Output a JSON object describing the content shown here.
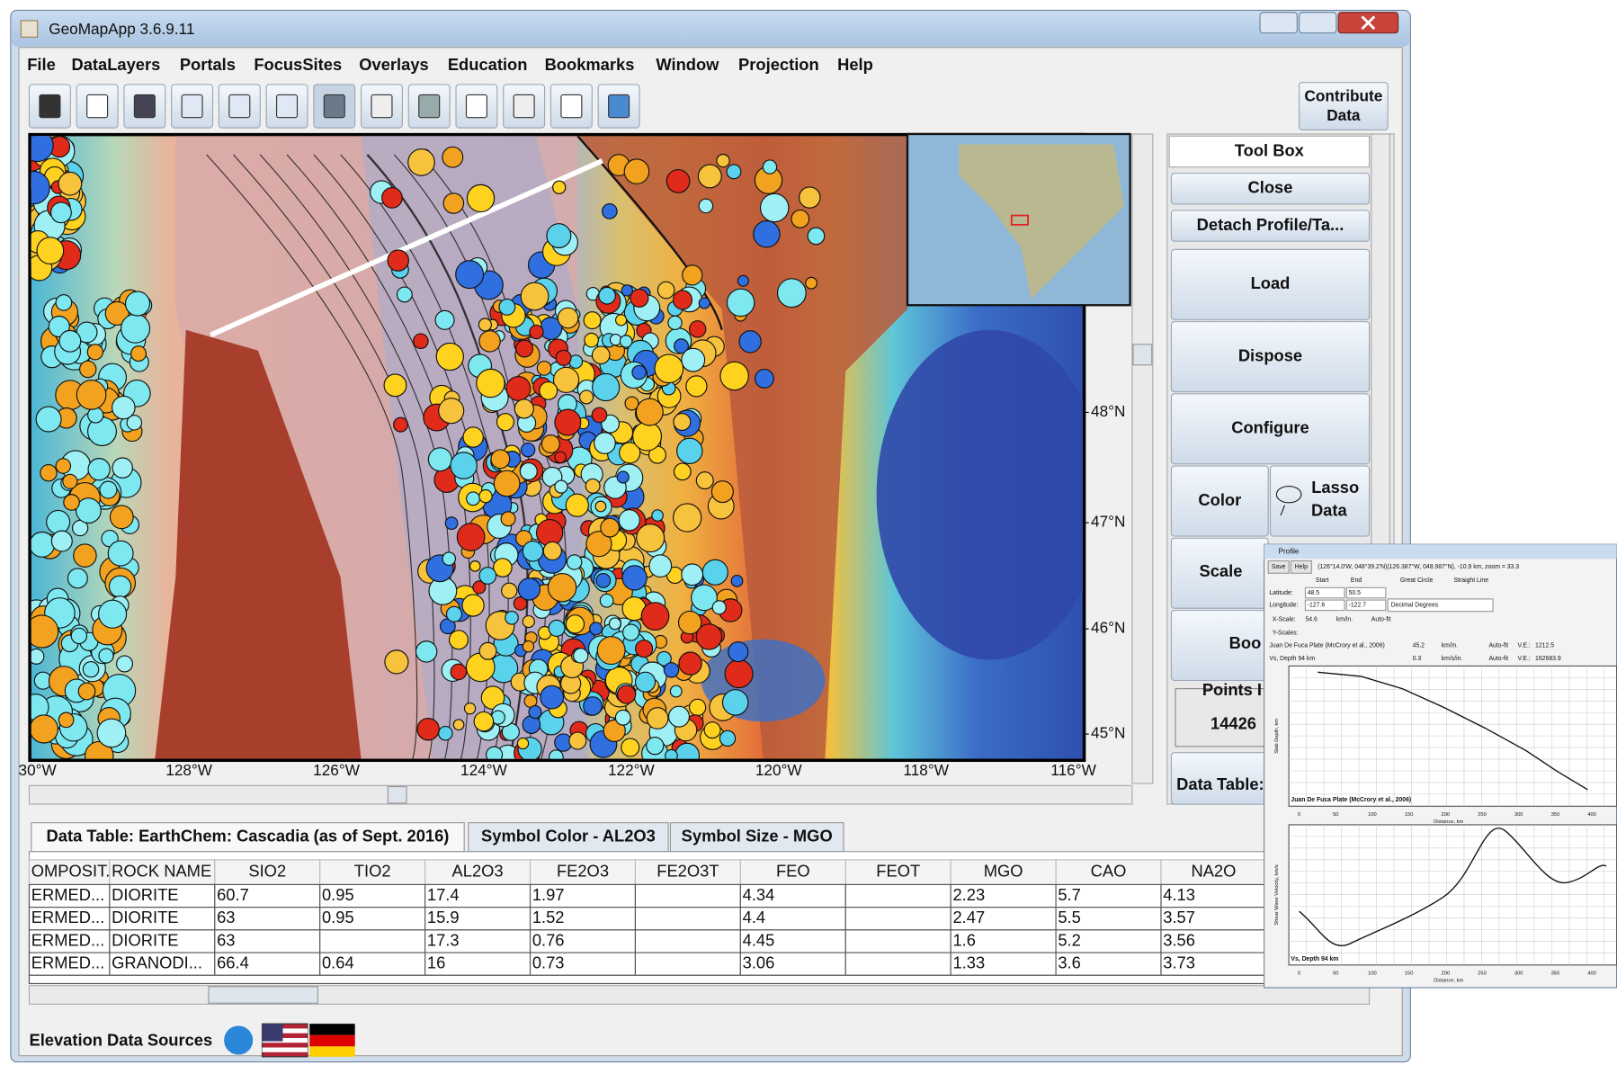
{
  "window": {
    "title": "GeoMapApp 3.6.9.11"
  },
  "menu": [
    "File",
    "DataLayers",
    "Portals",
    "FocusSites",
    "Overlays",
    "Education",
    "Bookmarks",
    "Window",
    "Projection",
    "Help"
  ],
  "toolbar": {
    "contribute": [
      "Contribute",
      "Data"
    ]
  },
  "map": {
    "lat_labels": [
      "48°N",
      "47°N",
      "46°N",
      "45°N"
    ],
    "lon_labels": [
      "30°W",
      "128°W",
      "126°W",
      "124°W",
      "122°W",
      "120°W",
      "118°W",
      "116°W"
    ]
  },
  "toolbox": {
    "title": "Tool Box",
    "buttons": [
      "Close",
      "Detach Profile/Ta...",
      "Load",
      "Dispose",
      "Configure"
    ],
    "color": "Color",
    "lasso": [
      "Lasso",
      "Data"
    ],
    "scale": "Scale",
    "book": "Boo",
    "points_label": "Points I",
    "points_value": "14426",
    "data_table": "Data Table:"
  },
  "tabs": [
    "Data Table: EarthChem: Cascadia (as of Sept. 2016)",
    "Symbol Color - AL2O3",
    "Symbol Size - MGO"
  ],
  "table": {
    "columns": [
      "OMPOSIT...",
      "ROCK NAME",
      "SIO2",
      "TIO2",
      "AL2O3",
      "FE2O3",
      "FE2O3T",
      "FEO",
      "FEOT",
      "MGO",
      "CAO",
      "NA2O"
    ],
    "rows": [
      [
        "ERMED...",
        "DIORITE",
        "60.7",
        "0.95",
        "17.4",
        "1.97",
        null,
        "4.34",
        null,
        "2.23",
        "5.7",
        "4.13"
      ],
      [
        "ERMED...",
        "DIORITE",
        "63",
        "0.95",
        "15.9",
        "1.52",
        null,
        "4.4",
        null,
        "2.47",
        "5.5",
        "3.57"
      ],
      [
        "ERMED...",
        "DIORITE",
        "63",
        null,
        "17.3",
        "0.76",
        null,
        "4.45",
        null,
        "1.6",
        "5.2",
        "3.56"
      ],
      [
        "ERMED...",
        "GRANODI...",
        "66.4",
        "0.64",
        "16",
        "0.73",
        null,
        "3.06",
        null,
        "1.33",
        "3.6",
        "3.73"
      ]
    ]
  },
  "footer": {
    "label": "Elevation Data Sources"
  },
  "profile": {
    "title": "Profile",
    "buttons": [
      "Save",
      "Help"
    ],
    "header": "(126°14.0'W, 048°39.2'N)(126.387°W, 048.987°N), -10.9 km, zoom = 33.3",
    "start": "Start",
    "end": "End",
    "great_circle": "Great Circle",
    "straight_line": "Straight Line",
    "latitude": {
      "label": "Latitude:",
      "start": "48.5",
      "end": "50.5"
    },
    "longitude": {
      "label": "Longitude:",
      "start": "-127.6",
      "end": "-122.7",
      "units": "Decimal Degrees"
    },
    "xscale": {
      "label": "X-Scale:",
      "value": "54.6",
      "units": "km/in.",
      "auto": "Auto-fit"
    },
    "yscales": "Y-Scales:",
    "layers": [
      {
        "name": "Juan De Fuca Plate (McCrory et al., 2006)",
        "value": "45.2",
        "units": "km/in.",
        "auto": "Auto-fit",
        "ve_label": "V.E.:",
        "ve": "1212.5"
      },
      {
        "name": "Vs, Depth 94 km",
        "value": "0.3",
        "units": "km/s/in.",
        "auto": "Auto-fit",
        "ve_label": "V.E.:",
        "ve": "162683.9"
      }
    ],
    "plots": [
      {
        "label": "Juan De Fuca Plate (McCrory et al., 2006)",
        "ylabel": "Slab Depth, km",
        "xlabel": "Distance, km"
      },
      {
        "label": "Vs, Depth 94 km",
        "ylabel": "Shear Wave Velocity, km/s",
        "xlabel": "Distance, km"
      }
    ],
    "xticks": [
      "0",
      "50",
      "100",
      "150",
      "200",
      "250",
      "300",
      "350",
      "400"
    ]
  }
}
